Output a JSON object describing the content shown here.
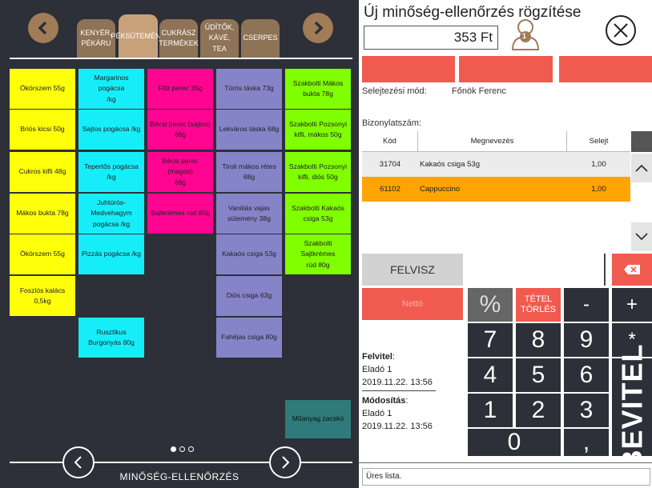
{
  "left_panel": {
    "tabs": [
      {
        "label": "KENYÉR,\nPÉKÁRU",
        "active": false
      },
      {
        "label": "PÉKSÜTEMÉNY",
        "active": true
      },
      {
        "label": "CUKRÁSZ\nTERMÉKEK",
        "active": false
      },
      {
        "label": "ÜDÍTŐK,\nKÁVÉ, TEA",
        "active": false
      },
      {
        "label": "CSERPES",
        "active": false
      }
    ],
    "products": [
      {
        "label": "Ökörszem 55g",
        "color": "#ffff0a"
      },
      {
        "label": "Briós kicsi 50g",
        "color": "#ffff0a"
      },
      {
        "label": "Cukros kifli 48g",
        "color": "#ffff0a"
      },
      {
        "label": "Mákos bukta 78g",
        "color": "#ffff0a"
      },
      {
        "label": "Ökörszem 55g",
        "color": "#ffff0a"
      },
      {
        "label": "Foszlós kalács 0,5kg",
        "color": "#ffff0a"
      },
      {
        "label": "Margarinos pogácsa\n/kg",
        "color": "#15eef8"
      },
      {
        "label": "Sajtos pogácsa /kg",
        "color": "#15eef8"
      },
      {
        "label": "Tepertős pogácsa\n/kg",
        "color": "#15eef8"
      },
      {
        "label": "Juhtúrós-Medvehagym\npogácsa /kg",
        "color": "#15eef8"
      },
      {
        "label": "Pizzás pogácsa /kg",
        "color": "#15eef8"
      },
      {
        "label": "Rusztikus\nBurgonyás 80g",
        "color": "#15eef8"
      },
      {
        "label": "Főtt perec 35g",
        "color": "#ff0592"
      },
      {
        "label": "Bécsi perec (sajtos)\n68g",
        "color": "#ff0592"
      },
      {
        "label": "Bécsi perec (magos)\n68g",
        "color": "#ff0592"
      },
      {
        "label": "Sajtkrémes rúd 80g",
        "color": "#ff0592"
      },
      {
        "label": "Túrós táska 73g",
        "color": "#8684c8"
      },
      {
        "label": "Lekváros táska 68g",
        "color": "#8684c8"
      },
      {
        "label": "Tiroli mákos rétes\n68g",
        "color": "#8684c8"
      },
      {
        "label": "Vaniliás vajas\nsütemény 38g",
        "color": "#8684c8"
      },
      {
        "label": "Kakaós csiga 53g",
        "color": "#8684c8"
      },
      {
        "label": "Diós csiga 63g",
        "color": "#8684c8"
      },
      {
        "label": "Fahéjas csiga 80g",
        "color": "#8684c8"
      },
      {
        "label": "Szakbolti Mákos\nbukta 78g",
        "color": "#80ff00"
      },
      {
        "label": "Szakbolti Pozsonyi\nkifli, mákos 50g",
        "color": "#80ff00"
      },
      {
        "label": "Szakbolti Pozsonyi\nkifli, diós 50g",
        "color": "#80ff00"
      },
      {
        "label": "Szakbolti Kakaós\ncsiga 53g",
        "color": "#80ff00"
      },
      {
        "label": "Szakbolti Sajtkrémes\nrúd 80g",
        "color": "#80ff00"
      },
      {
        "label": "Műanyag zacskó",
        "color": "#2f7a7a"
      }
    ],
    "footer_label": "MINŐSÉG-ELLENŐRZÉS"
  },
  "right_panel": {
    "title": "Új minőség-ellenőrzés rögzítése",
    "price": "353 Ft",
    "user_badge": "1",
    "selejtezesi_mod_label": "Selejtezési mód:",
    "selejtezesi_mod_value": "Főnök Ferenc",
    "bizonylatszam_label": "Bizonylatszám:",
    "table": {
      "headers": [
        "Kód",
        "Megnevezés",
        "Selejt"
      ],
      "rows": [
        {
          "kod": "31704",
          "nev": "Kakaós csiga 53g",
          "selejt": "1,00"
        },
        {
          "kod": "61102",
          "nev": "Cappuccino",
          "selejt": "1,00"
        }
      ]
    },
    "felvisz_label": "FELVISZ",
    "netto_label": "Nettó",
    "keypad": {
      "pct": "%",
      "tetel_torles": "TÉTEL\nTÖRLÉS",
      "minus": "-",
      "plus": "+",
      "star": "*",
      "seven": "7",
      "eight": "8",
      "nine": "9",
      "four": "4",
      "five": "5",
      "six": "6",
      "one": "1",
      "two": "2",
      "three": "3",
      "zero": "0",
      "comma": ",",
      "bevitel": "BEVITEL"
    },
    "felvitel_label": "Felvitel",
    "felvitel_user": "Eladó 1",
    "felvitel_date": "2019.11.22. 13:56",
    "modositas_label": "Módosítás",
    "modositas_user": "Eladó 1",
    "modositas_date": "2019.11.22. 13:56",
    "status": "Üres lista."
  }
}
